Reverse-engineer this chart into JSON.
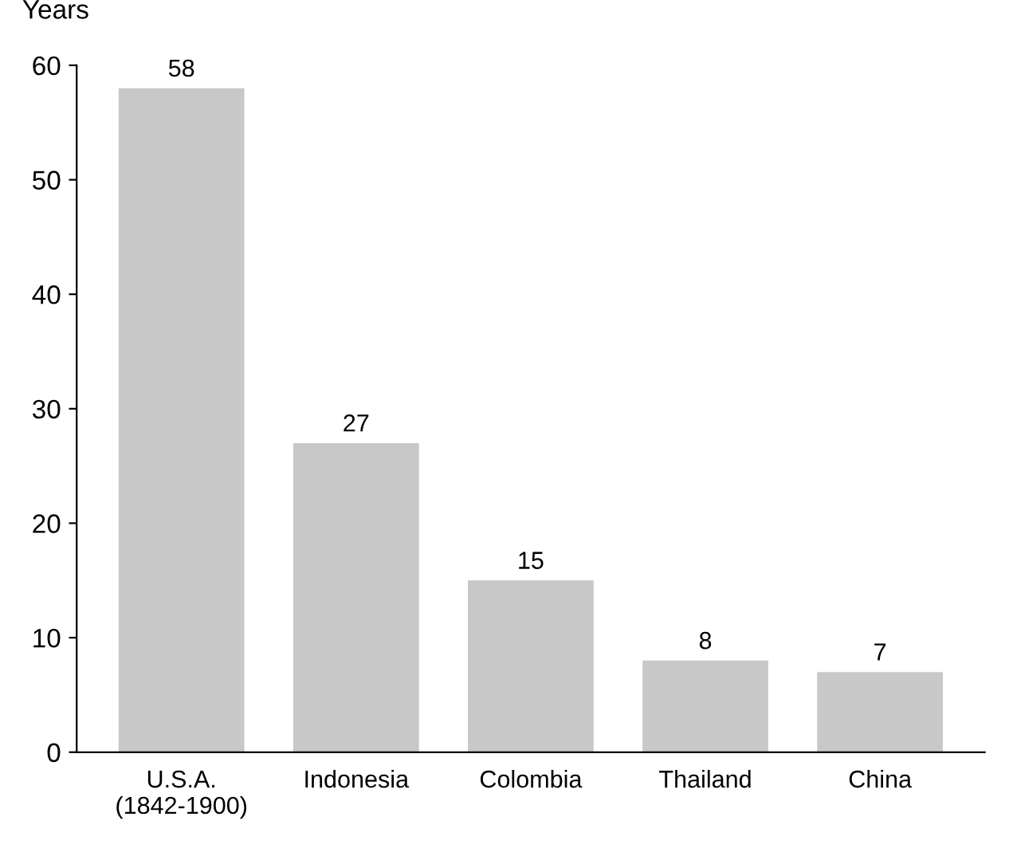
{
  "chart_data": {
    "type": "bar",
    "ylabel": "Years",
    "categories": [
      "U.S.A.\n(1842-1900)",
      "Indonesia",
      "Colombia",
      "Thailand",
      "China"
    ],
    "values": [
      58,
      27,
      15,
      8,
      7
    ],
    "color": "#c8c8c8",
    "ylim": [
      0,
      60
    ],
    "yticks": [
      0,
      10,
      20,
      30,
      40,
      50,
      60
    ],
    "grid": false,
    "data_labels": true
  }
}
